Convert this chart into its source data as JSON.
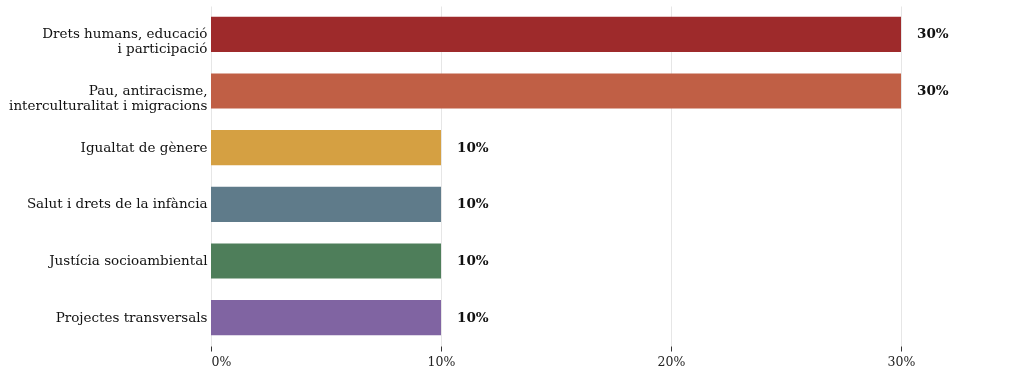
{
  "chart_data": {
    "type": "bar",
    "orientation": "horizontal",
    "categories": [
      "Drets humans, educació\ni participació",
      "Pau, antiracisme,\ninterculturalitat i migracions",
      "Igualtat de gènere",
      "Salut i drets de la infància",
      "Justícia socioambiental",
      "Projectes transversals"
    ],
    "values": [
      30,
      30,
      10,
      10,
      10,
      10
    ],
    "colors": [
      "#9e2a2b",
      "#c05f45",
      "#d5a042",
      "#5f7b8a",
      "#4e7e5a",
      "#8064a2"
    ],
    "value_labels": [
      "30%",
      "30%",
      "10%",
      "10%",
      "10%",
      "10%"
    ],
    "xlim": [
      0,
      35
    ],
    "xticks": [
      {
        "value": 0,
        "label": "0%"
      },
      {
        "value": 10,
        "label": "10%"
      },
      {
        "value": 20,
        "label": "20%"
      },
      {
        "value": 30,
        "label": "30%"
      }
    ],
    "grid": "x"
  }
}
